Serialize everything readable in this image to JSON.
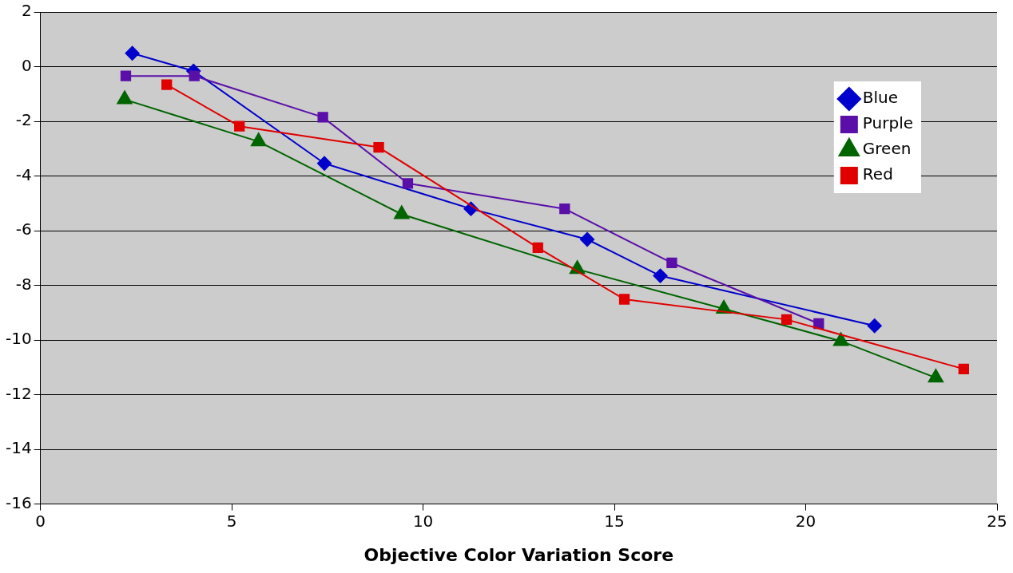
{
  "chart_data": {
    "type": "line",
    "xlabel": "Objective Color Variation Score",
    "xlim": [
      0,
      25
    ],
    "xticks": [
      0,
      5,
      10,
      15,
      20,
      25
    ],
    "ylim": [
      -16,
      2
    ],
    "yticks": [
      -16,
      -14,
      -12,
      -10,
      -8,
      -6,
      -4,
      -2,
      0,
      2
    ],
    "grid": "y",
    "legend": "top right",
    "line_style": "solid",
    "series": [
      {
        "name": "Blue",
        "color": "#0000cc",
        "marker": "diamond",
        "x": [
          2.4,
          4.0,
          7.42,
          11.25,
          14.29,
          16.2,
          21.8
        ],
        "values": [
          0.49,
          -0.16,
          -3.54,
          -5.2,
          -6.32,
          -7.65,
          -9.48
        ]
      },
      {
        "name": "Purple",
        "color": "#5a0fa8",
        "marker": "square",
        "x": [
          2.23,
          4.02,
          7.38,
          9.6,
          13.7,
          16.5,
          20.34
        ],
        "values": [
          -0.34,
          -0.34,
          -1.85,
          -4.27,
          -5.2,
          -7.18,
          -9.4
        ]
      },
      {
        "name": "Green",
        "color": "#006400",
        "marker": "triangle",
        "x": [
          2.2,
          5.7,
          9.44,
          14.03,
          17.86,
          20.92,
          23.4
        ],
        "values": [
          -1.2,
          -2.74,
          -5.4,
          -7.41,
          -8.86,
          -10.04,
          -11.38
        ]
      },
      {
        "name": "Red",
        "color": "#e00000",
        "marker": "square",
        "x": [
          3.3,
          5.2,
          8.84,
          13.0,
          15.26,
          19.5,
          24.13
        ],
        "values": [
          -0.66,
          -2.18,
          -2.95,
          -6.62,
          -8.51,
          -9.25,
          -11.06
        ]
      }
    ]
  }
}
